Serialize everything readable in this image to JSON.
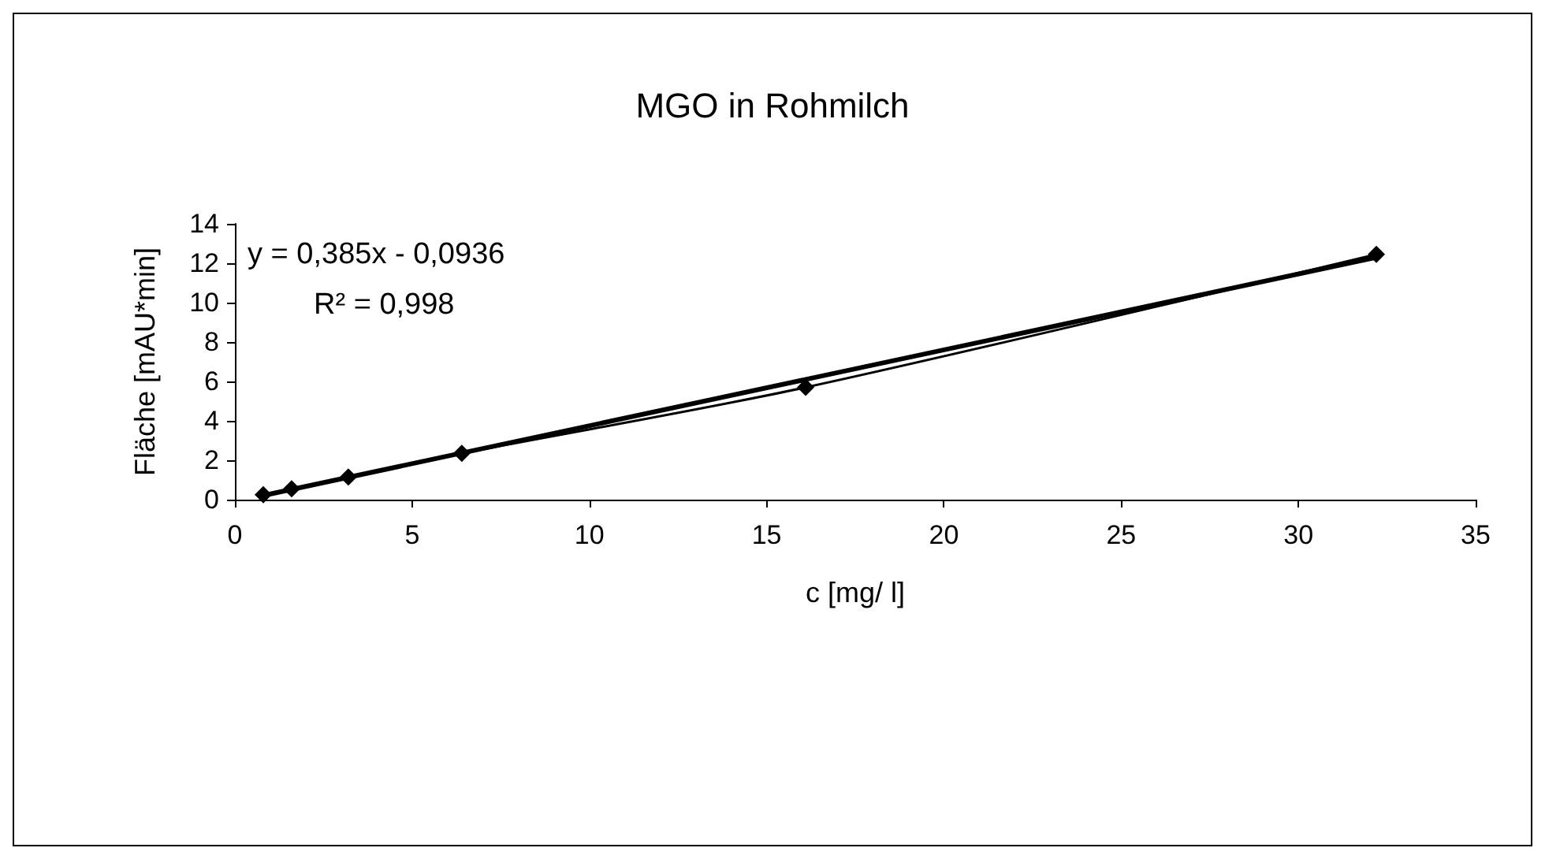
{
  "chart_data": {
    "type": "line",
    "title": "MGO in Rohmilch",
    "xlabel": "c [mg/ l]",
    "ylabel": "Fläche [mAU*min]",
    "xlim": [
      0,
      35
    ],
    "xticks": [
      0,
      5,
      10,
      15,
      20,
      25,
      30,
      35
    ],
    "ylim": [
      0,
      14
    ],
    "yticks": [
      0,
      2,
      4,
      6,
      8,
      10,
      12,
      14
    ],
    "grid": false,
    "annotations": [
      "y = 0,385x - 0,0936",
      "R² = 0,998"
    ],
    "series": [
      {
        "color": "#000000",
        "x": [
          0.8,
          1.6,
          3.2,
          6.4,
          16.1,
          32.2
        ],
        "values": [
          0.25,
          0.55,
          1.15,
          2.35,
          5.7,
          12.45
        ],
        "marker": "diamond",
        "line_style": "solid"
      },
      {
        "color": "#000000",
        "x": [
          0.8,
          32.2
        ],
        "values": [
          0.21,
          12.3
        ],
        "marker": "none",
        "line_style": "solid"
      }
    ]
  }
}
